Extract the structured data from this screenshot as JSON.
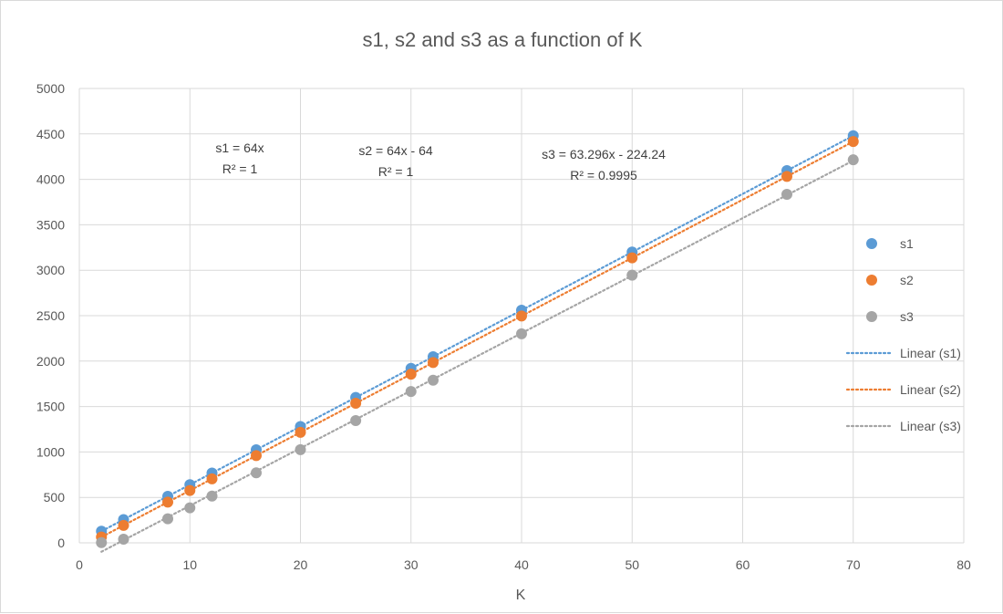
{
  "chart_data": {
    "type": "scatter",
    "title": "s1, s2 and s3 as a function of K",
    "xlabel": "K",
    "ylabel": "",
    "xlim": [
      0,
      80
    ],
    "ylim": [
      0,
      5000
    ],
    "x_ticks": [
      0,
      10,
      20,
      30,
      40,
      50,
      60,
      70,
      80
    ],
    "y_ticks": [
      0,
      500,
      1000,
      1500,
      2000,
      2500,
      3000,
      3500,
      4000,
      4500,
      5000
    ],
    "grid": true,
    "legend_position": "right",
    "x": [
      2,
      4,
      8,
      10,
      12,
      16,
      20,
      25,
      30,
      32,
      40,
      50,
      64,
      70
    ],
    "series": [
      {
        "name": "s1",
        "color": "#5b9bd5",
        "values": [
          128,
          256,
          512,
          640,
          768,
          1024,
          1280,
          1600,
          1920,
          2048,
          2560,
          3200,
          4096,
          4480
        ],
        "trendline": {
          "name": "Linear  (s1)",
          "slope": 64,
          "intercept": 0,
          "equation": "s1 = 64x",
          "r2": "R² = 1"
        }
      },
      {
        "name": "s2",
        "color": "#ed7d31",
        "values": [
          64,
          192,
          448,
          576,
          704,
          960,
          1216,
          1536,
          1856,
          1984,
          2496,
          3136,
          4032,
          4416
        ],
        "trendline": {
          "name": "Linear  (s2)",
          "slope": 64,
          "intercept": -64,
          "equation": "s2 = 64x - 64",
          "r2": "R² = 1"
        }
      },
      {
        "name": "s3",
        "color": "#a5a5a5",
        "values": [
          2,
          40,
          265,
          385,
          515,
          770,
          1025,
          1345,
          1665,
          1790,
          2300,
          2945,
          3835,
          4215
        ],
        "trendline": {
          "name": "Linear  (s3)",
          "slope": 63.296,
          "intercept": -224.24,
          "equation": "s3 = 63.296x - 224.24",
          "r2": "R² = 0.9995"
        }
      }
    ]
  }
}
